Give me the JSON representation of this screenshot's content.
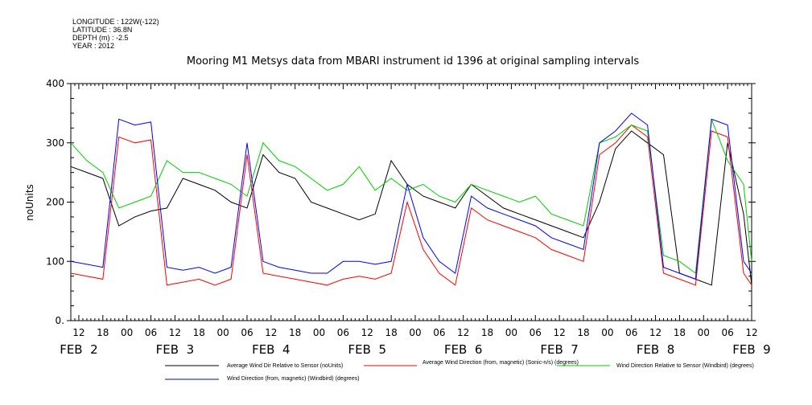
{
  "header": {
    "meta_lines": [
      "LONGITUDE : 122W(-122)",
      "LATITUDE : 36.8N",
      "DEPTH (m) : -2.5",
      "YEAR : 2012"
    ]
  },
  "chart_data": {
    "type": "line",
    "title": "Mooring M1 Metsys data from MBARI instrument id 1396 at original sampling intervals",
    "ylabel": "noUnits",
    "ylim": [
      0,
      400
    ],
    "yticks": [
      "0.",
      "100",
      "200",
      "300",
      "400"
    ],
    "xlim_hours": [
      10,
      180
    ],
    "hour_ticks": [
      "12",
      "18",
      "00",
      "06",
      "12",
      "18",
      "00",
      "06",
      "12",
      "18",
      "00",
      "06",
      "12",
      "18",
      "00",
      "06",
      "12",
      "18",
      "00",
      "06",
      "12",
      "18",
      "00",
      "06",
      "12",
      "18",
      "00",
      "06",
      "12",
      "18",
      "00",
      "06",
      "12",
      "18",
      "00",
      "06"
    ],
    "date_labels": [
      "FEB  2",
      "FEB  3",
      "FEB  4",
      "FEB  5",
      "FEB  6",
      "FEB  7",
      "FEB  8",
      "FEB  9"
    ],
    "x_unit": "hours since 00:00 FEB 2, 2012",
    "series": [
      {
        "name": "Average Wind Dir Relative to Sensor (noUnits)",
        "color": "#000000",
        "x": [
          10,
          14,
          18,
          22,
          26,
          30,
          34,
          38,
          42,
          46,
          50,
          54,
          58,
          62,
          66,
          70,
          74,
          78,
          82,
          86,
          90,
          94,
          98,
          102,
          106,
          110,
          114,
          118,
          122,
          126,
          130,
          134,
          138,
          142,
          146,
          150,
          154,
          158,
          162,
          166,
          170,
          174,
          178,
          180
        ],
        "y": [
          260,
          250,
          240,
          160,
          175,
          185,
          190,
          240,
          230,
          220,
          200,
          190,
          280,
          250,
          240,
          200,
          190,
          180,
          170,
          180,
          270,
          230,
          210,
          200,
          190,
          230,
          210,
          190,
          180,
          170,
          160,
          150,
          140,
          200,
          290,
          320,
          300,
          280,
          80,
          70,
          60,
          300,
          180,
          60
        ]
      },
      {
        "name": "Average Wind Direction (from, magnetic) (Sonic-n/s) (degrees)",
        "color": "#ff0000",
        "x": [
          10,
          14,
          18,
          22,
          26,
          30,
          34,
          38,
          42,
          46,
          50,
          54,
          58,
          62,
          66,
          70,
          74,
          78,
          82,
          86,
          90,
          94,
          98,
          102,
          106,
          110,
          114,
          118,
          122,
          126,
          130,
          134,
          138,
          142,
          146,
          150,
          154,
          158,
          162,
          166,
          170,
          174,
          178,
          180
        ],
        "y": [
          80,
          75,
          70,
          310,
          300,
          305,
          60,
          65,
          70,
          60,
          70,
          280,
          80,
          75,
          70,
          65,
          60,
          70,
          75,
          70,
          80,
          200,
          120,
          80,
          60,
          190,
          170,
          160,
          150,
          140,
          120,
          110,
          100,
          280,
          300,
          330,
          310,
          80,
          70,
          60,
          320,
          310,
          80,
          60
        ]
      },
      {
        "name": "Wind Direction Relative to Sensor (Windbird) (degrees)",
        "color": "#00cc00",
        "x": [
          10,
          14,
          18,
          22,
          26,
          30,
          34,
          38,
          42,
          46,
          50,
          54,
          58,
          62,
          66,
          70,
          74,
          78,
          82,
          86,
          90,
          94,
          98,
          102,
          106,
          110,
          114,
          118,
          122,
          126,
          130,
          134,
          138,
          142,
          146,
          150,
          154,
          158,
          162,
          166,
          170,
          174,
          178,
          180
        ],
        "y": [
          300,
          270,
          250,
          190,
          200,
          210,
          270,
          250,
          250,
          240,
          230,
          210,
          300,
          270,
          260,
          240,
          220,
          230,
          260,
          220,
          240,
          220,
          230,
          210,
          200,
          230,
          220,
          210,
          200,
          210,
          180,
          170,
          160,
          300,
          310,
          330,
          320,
          110,
          100,
          80,
          340,
          270,
          230,
          100
        ]
      },
      {
        "name": "Wind Direction (from, magnetic) (Windbird) (degrees)",
        "color": "#0000ff",
        "x": [
          10,
          14,
          18,
          22,
          26,
          30,
          34,
          38,
          42,
          46,
          50,
          54,
          58,
          62,
          66,
          70,
          74,
          78,
          82,
          86,
          90,
          94,
          98,
          102,
          106,
          110,
          114,
          118,
          122,
          126,
          130,
          134,
          138,
          142,
          146,
          150,
          154,
          158,
          162,
          166,
          170,
          174,
          178,
          180
        ],
        "y": [
          100,
          95,
          90,
          340,
          330,
          335,
          90,
          85,
          90,
          80,
          90,
          300,
          100,
          90,
          85,
          80,
          80,
          100,
          100,
          95,
          100,
          230,
          140,
          100,
          80,
          210,
          190,
          180,
          170,
          160,
          140,
          130,
          120,
          300,
          320,
          350,
          330,
          90,
          80,
          70,
          340,
          330,
          100,
          80
        ]
      }
    ],
    "legend": [
      {
        "label": "Average Wind Dir Relative to Sensor (noUnits)",
        "color": "#000000"
      },
      {
        "label": "Average Wind Direction (from, magnetic) (Sonic-n/s) (degrees)",
        "color": "#ff0000"
      },
      {
        "label": "Wind Direction Relative to Sensor (Windbird) (degrees)",
        "color": "#00cc00"
      },
      {
        "label": "Wind Direction (from, magnetic) (Windbird) (degrees)",
        "color": "#0000ff"
      }
    ]
  }
}
